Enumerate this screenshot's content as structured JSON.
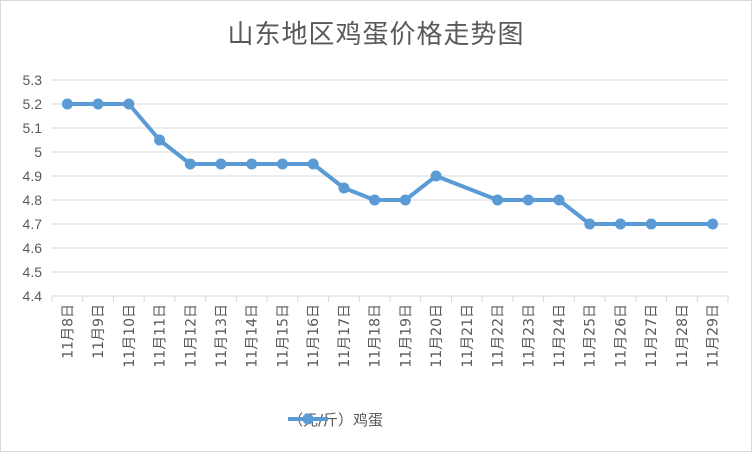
{
  "chart_data": {
    "type": "line",
    "title": "山东地区鸡蛋价格走势图",
    "categories": [
      "11月8日",
      "11月9日",
      "11月10日",
      "11月11日",
      "11月12日",
      "11月13日",
      "11月14日",
      "11月15日",
      "11月16日",
      "11月17日",
      "11月18日",
      "11月19日",
      "11月20日",
      "11月21日",
      "11月22日",
      "11月23日",
      "11月24日",
      "11月25日",
      "11月26日",
      "11月27日",
      "11月28日",
      "11月29日"
    ],
    "series": [
      {
        "name": "（元/斤）鸡蛋",
        "values": [
          5.2,
          5.2,
          5.2,
          5.05,
          4.95,
          4.95,
          4.95,
          4.95,
          4.95,
          4.85,
          4.8,
          4.8,
          4.9,
          null,
          4.8,
          4.8,
          4.8,
          4.7,
          4.7,
          4.7,
          null,
          4.7
        ]
      }
    ],
    "ylim": [
      4.4,
      5.3
    ],
    "yticks": [
      "4.4",
      "4.5",
      "4.6",
      "4.7",
      "4.8",
      "4.9",
      "5",
      "5.1",
      "5.2",
      "5.3"
    ],
    "xlabel": "",
    "ylabel": "",
    "grid": true,
    "legend_position": "bottom",
    "colors": {
      "line": "#5b9bd5",
      "grid": "#d9d9d9",
      "text": "#595959"
    }
  }
}
